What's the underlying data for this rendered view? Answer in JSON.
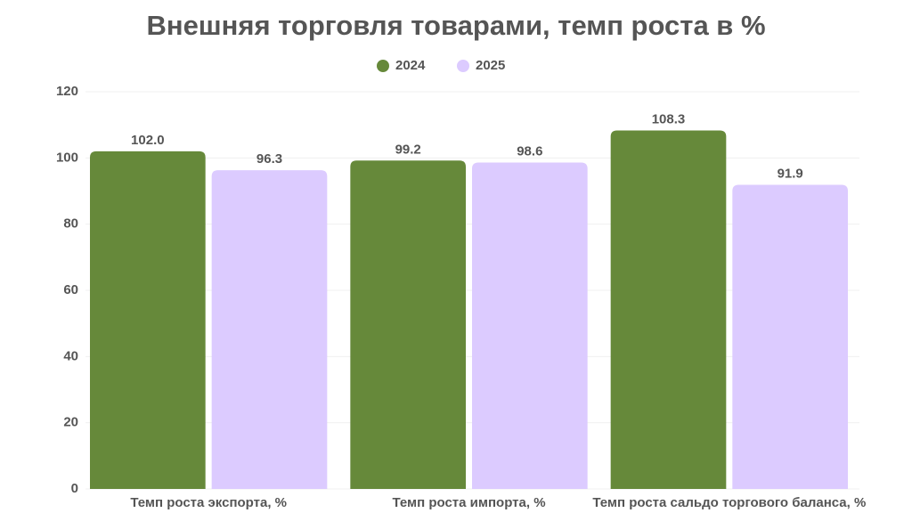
{
  "chart_data": {
    "type": "bar",
    "title": "Внешняя торговля товарами, темп роста в %",
    "categories": [
      "Темп роста экспорта, %",
      "Темп роста импорта, %",
      "Темп роста сальдо торгового баланса, %"
    ],
    "series": [
      {
        "name": "2024",
        "color": "#66893a",
        "values": [
          102.0,
          99.2,
          108.3
        ],
        "value_labels": [
          "102.0",
          "99.2",
          "108.3"
        ]
      },
      {
        "name": "2025",
        "color": "#dccbff",
        "values": [
          96.3,
          98.6,
          91.9
        ],
        "value_labels": [
          "96.3",
          "98.6",
          "91.9"
        ]
      }
    ],
    "ylim": [
      0,
      120
    ],
    "yticks": [
      0,
      20,
      40,
      60,
      80,
      100,
      120
    ],
    "grid": true,
    "legend": "top"
  }
}
